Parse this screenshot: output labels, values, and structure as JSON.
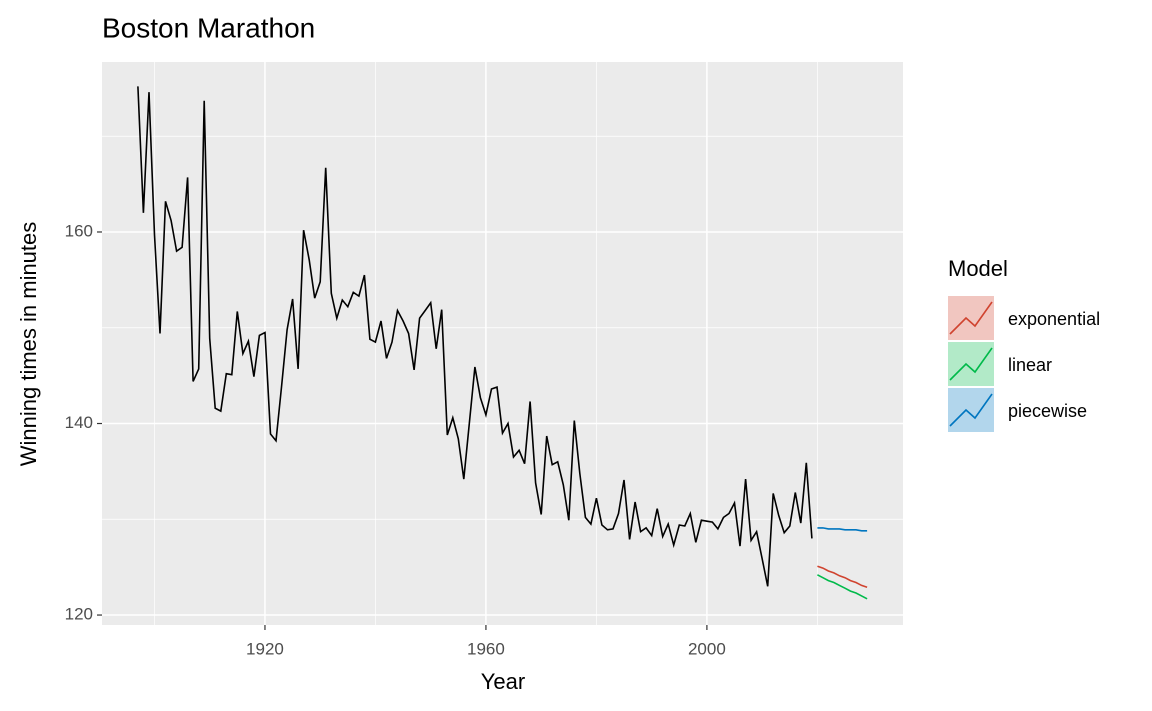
{
  "chart_data": {
    "type": "line",
    "title": "Boston Marathon",
    "xlabel": "Year",
    "ylabel": "Winning times in minutes",
    "legend_title": "Model",
    "legend_position": "right",
    "grid": true,
    "xlim": [
      1890.5,
      2035.5
    ],
    "ylim": [
      118.96,
      177.75
    ],
    "xticks": [
      1920,
      1960,
      2000
    ],
    "yticks": [
      120,
      140,
      160
    ],
    "xminor": [
      1900,
      1940,
      1980,
      2020
    ],
    "yminor": [
      130,
      150,
      170
    ],
    "color": "#000000",
    "x": [
      1897,
      1898,
      1899,
      1900,
      1901,
      1902,
      1903,
      1904,
      1905,
      1906,
      1907,
      1908,
      1909,
      1910,
      1911,
      1912,
      1913,
      1914,
      1915,
      1916,
      1917,
      1918,
      1919,
      1920,
      1921,
      1922,
      1923,
      1924,
      1925,
      1926,
      1927,
      1928,
      1929,
      1930,
      1931,
      1932,
      1933,
      1934,
      1935,
      1936,
      1937,
      1938,
      1939,
      1940,
      1941,
      1942,
      1943,
      1944,
      1945,
      1946,
      1947,
      1948,
      1949,
      1950,
      1951,
      1952,
      1953,
      1954,
      1955,
      1956,
      1957,
      1958,
      1959,
      1960,
      1961,
      1962,
      1963,
      1964,
      1965,
      1966,
      1967,
      1968,
      1969,
      1970,
      1971,
      1972,
      1973,
      1974,
      1975,
      1976,
      1977,
      1978,
      1979,
      1980,
      1981,
      1982,
      1983,
      1984,
      1985,
      1986,
      1987,
      1988,
      1989,
      1990,
      1991,
      1992,
      1993,
      1994,
      1995,
      1996,
      1997,
      1998,
      1999,
      2000,
      2001,
      2002,
      2003,
      2004,
      2005,
      2006,
      2007,
      2008,
      2009,
      2010,
      2011,
      2012,
      2013,
      2014,
      2015,
      2016,
      2017,
      2018,
      2019
    ],
    "values": [
      175.2,
      162.0,
      174.6,
      159.7,
      149.4,
      163.2,
      161.2,
      158.0,
      158.4,
      165.7,
      144.4,
      145.7,
      173.7,
      148.9,
      141.6,
      141.3,
      145.2,
      145.1,
      151.7,
      147.3,
      148.6,
      144.9,
      149.2,
      149.5,
      138.9,
      138.2,
      143.8,
      149.8,
      153.0,
      145.7,
      160.2,
      157.1,
      153.1,
      154.8,
      166.7,
      153.6,
      151.0,
      152.9,
      152.2,
      153.7,
      153.3,
      155.5,
      148.8,
      148.5,
      150.7,
      146.8,
      148.5,
      151.8,
      150.7,
      149.4,
      145.6,
      151.0,
      151.8,
      152.6,
      147.8,
      151.9,
      138.8,
      140.6,
      138.4,
      134.2,
      140.1,
      145.9,
      142.7,
      140.9,
      143.6,
      143.8,
      139.0,
      140.0,
      136.5,
      137.2,
      135.8,
      142.3,
      133.8,
      130.5,
      138.7,
      135.7,
      136.0,
      133.6,
      129.9,
      140.3,
      134.8,
      130.2,
      129.5,
      132.2,
      129.4,
      128.9,
      129.0,
      130.6,
      134.1,
      127.9,
      131.8,
      128.7,
      129.1,
      128.3,
      131.1,
      128.2,
      129.5,
      127.3,
      129.4,
      129.3,
      130.6,
      127.6,
      129.9,
      129.8,
      129.7,
      129.0,
      130.2,
      130.6,
      131.7,
      127.2,
      134.2,
      127.8,
      128.7,
      125.9,
      123.0,
      132.7,
      130.4,
      128.6,
      129.3,
      132.8,
      129.6,
      135.9,
      128.0
    ],
    "forecasts": {
      "x": [
        2020,
        2021,
        2022,
        2023,
        2024,
        2025,
        2026,
        2027,
        2028,
        2029
      ],
      "series": [
        {
          "name": "exponential",
          "color": "#D0432F",
          "values": [
            125.1,
            124.9,
            124.6,
            124.4,
            124.1,
            123.9,
            123.6,
            123.4,
            123.1,
            122.9
          ]
        },
        {
          "name": "linear",
          "color": "#00BA4A",
          "values": [
            124.2,
            123.9,
            123.6,
            123.4,
            123.1,
            122.8,
            122.5,
            122.3,
            122.0,
            121.7
          ]
        },
        {
          "name": "piecewise",
          "color": "#0076C0",
          "values": [
            129.1,
            129.1,
            129.0,
            129.0,
            129.0,
            128.9,
            128.9,
            128.9,
            128.8,
            128.8
          ]
        }
      ]
    }
  }
}
